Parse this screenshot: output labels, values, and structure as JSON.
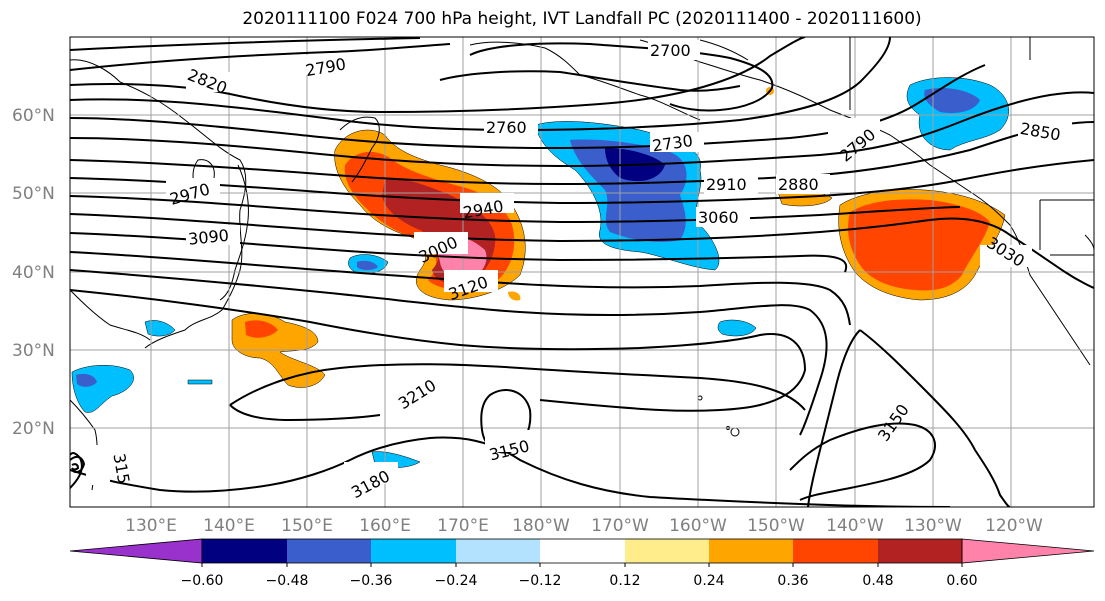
{
  "title": "2020111100 F024 700 hPa height, IVT Landfall PC (2020111400 - 2020111600)",
  "lat_labels": [
    "60°N",
    "50°N",
    "40°N",
    "30°N",
    "20°N"
  ],
  "lon_labels": [
    "130°E",
    "140°E",
    "150°E",
    "160°E",
    "170°E",
    "180°W",
    "170°W",
    "160°W",
    "150°W",
    "140°W",
    "130°W",
    "120°W"
  ],
  "contour_labels": [
    "2700",
    "2790",
    "2820",
    "2760",
    "2730",
    "2850",
    "2790",
    "2970",
    "2940",
    "2910",
    "2880",
    "3090",
    "3000",
    "3060",
    "3120",
    "3030",
    "3210",
    "3150",
    "3150",
    "3180",
    "315"
  ],
  "colorbar": {
    "ticks": [
      "−0.60",
      "−0.48",
      "−0.36",
      "−0.24",
      "−0.12",
      "0.12",
      "0.24",
      "0.36",
      "0.48",
      "0.60"
    ],
    "colors": [
      "#9932CC",
      "#000080",
      "#3A5FCD",
      "#00BFFF",
      "#B2E2FF",
      "#FFFFFF",
      "#FFEC8B",
      "#FFA500",
      "#FF4500",
      "#B22222",
      "#FF82AB"
    ]
  },
  "colors": {
    "grid": "#a0a0a0",
    "contour": "#000000",
    "coast": "#000000",
    "tick_text": "#808080"
  }
}
